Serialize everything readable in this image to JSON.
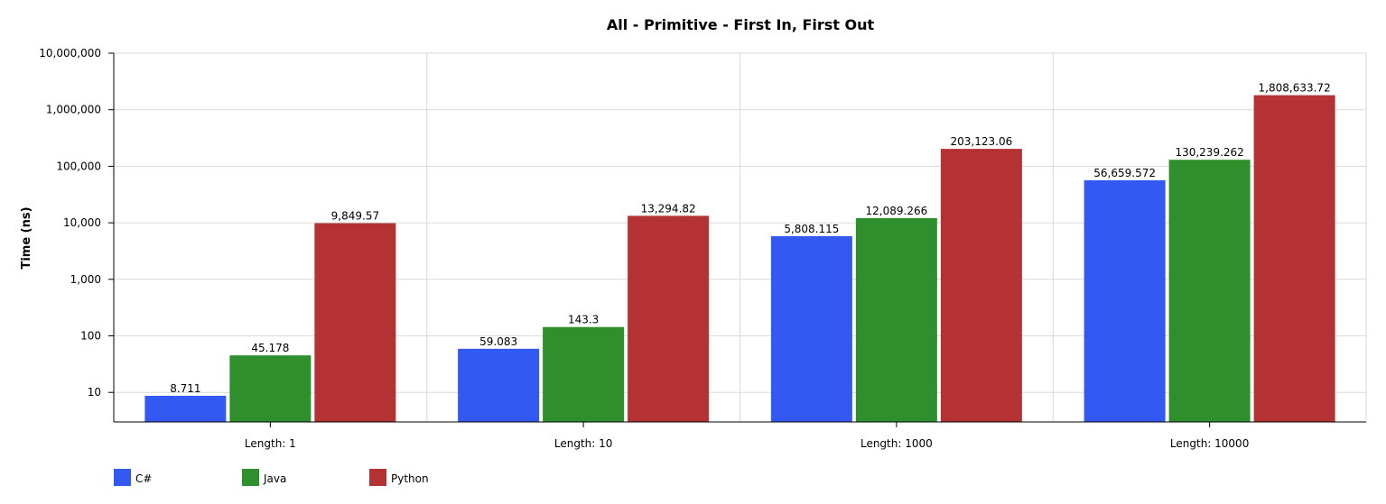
{
  "chart_data": {
    "type": "bar",
    "title": "All - Primitive - First In, First Out",
    "ylabel": "Time (ns)",
    "xlabel": "",
    "yscale": "log",
    "ylim": [
      3,
      10000000
    ],
    "yticks": [
      10,
      100,
      1000,
      10000,
      100000,
      1000000,
      10000000
    ],
    "ytick_labels": [
      "10",
      "100",
      "1,000",
      "10,000",
      "100,000",
      "1,000,000",
      "10,000,000"
    ],
    "categories": [
      "Length: 1",
      "Length: 10",
      "Length: 1000",
      "Length: 10000"
    ],
    "series": [
      {
        "name": "C#",
        "color": "#3359f2",
        "values": [
          8.711,
          59.083,
          5808.115,
          56659.572
        ],
        "labels": [
          "8.711",
          "59.083",
          "5,808.115",
          "56,659.572"
        ]
      },
      {
        "name": "Java",
        "color": "#2f8f2d",
        "values": [
          45.178,
          143.3,
          12089.266,
          130239.262
        ],
        "labels": [
          "45.178",
          "143.3",
          "12,089.266",
          "130,239.262"
        ]
      },
      {
        "name": "Python",
        "color": "#b53234",
        "values": [
          9849.57,
          13294.82,
          203123.06,
          1808633.72
        ],
        "labels": [
          "9,849.57",
          "13,294.82",
          "203,123.06",
          "1,808,633.72"
        ]
      }
    ],
    "grid": true,
    "legend_position": "bottom-left"
  }
}
